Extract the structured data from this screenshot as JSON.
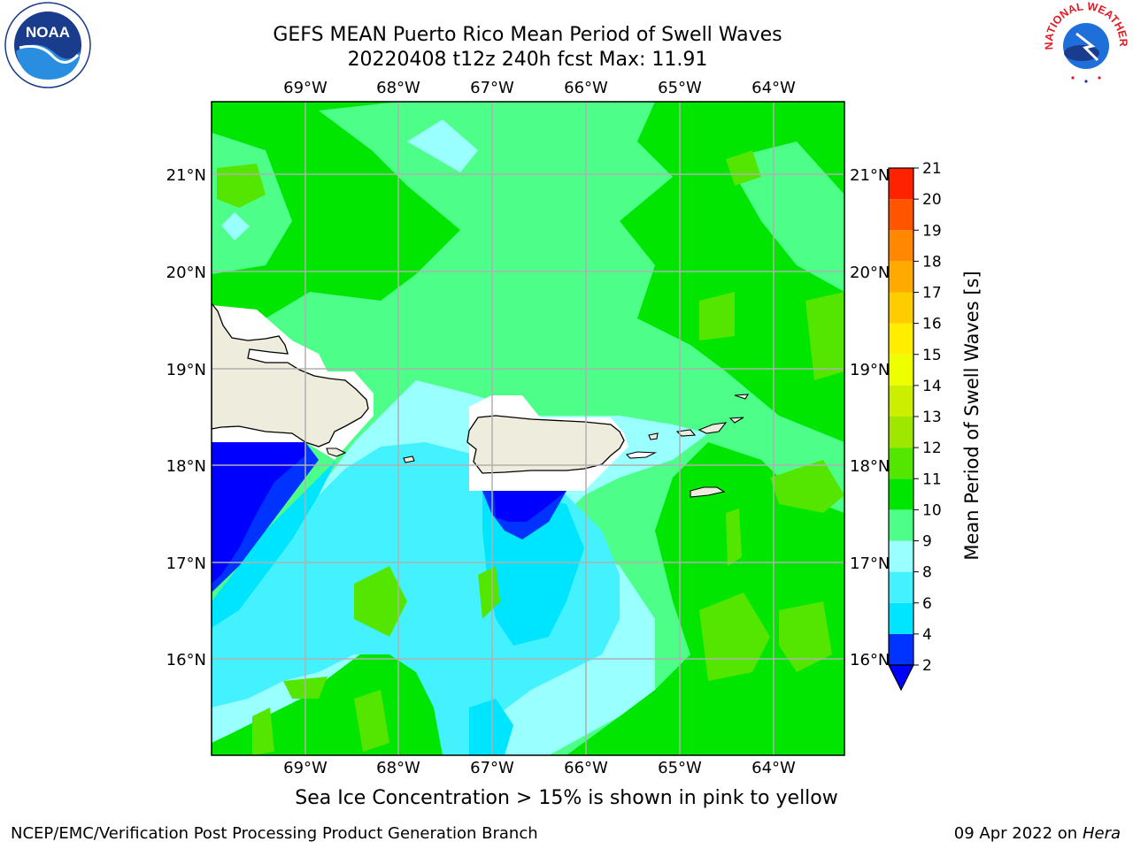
{
  "header": {
    "title_line1": "GEFS MEAN Puerto Rico Mean Period of Swell Waves",
    "title_line2": "20220408 t12z 240h fcst   Max: 11.91"
  },
  "logos": {
    "noaa": {
      "text": "NOAA",
      "icon": "noaa-logo-icon"
    },
    "nws": {
      "text": "NATIONAL WEATHER SERVICE",
      "icon": "nws-logo-icon"
    }
  },
  "map": {
    "lon_labels": [
      "69°W",
      "68°W",
      "67°W",
      "66°W",
      "65°W",
      "64°W"
    ],
    "lat_labels": [
      "21°N",
      "20°N",
      "19°N",
      "18°N",
      "17°N",
      "16°N"
    ],
    "extent": {
      "lon_min": -70.0,
      "lon_max": -63.25,
      "lat_min": 15.0,
      "lat_max": 21.75
    },
    "colors": {
      "land": "#eeecdc",
      "coast": "#000000",
      "grid": "#b0b0b0",
      "masked": "#ffffff"
    }
  },
  "colorbar": {
    "label": "Mean Period of Swell Waves [s]",
    "ticks": [
      "2",
      "4",
      "6",
      "8",
      "9",
      "10",
      "11",
      "12",
      "13",
      "14",
      "15",
      "16",
      "17",
      "18",
      "19",
      "20",
      "21"
    ],
    "levels": [
      2,
      4,
      6,
      8,
      9,
      10,
      11,
      12,
      13,
      14,
      15,
      16,
      17,
      18,
      19,
      20,
      21
    ],
    "colors": [
      "#0033ff",
      "#00e5ff",
      "#44f2ff",
      "#99ffff",
      "#4dff88",
      "#00e600",
      "#55e600",
      "#9fe600",
      "#ccee00",
      "#eeff00",
      "#ffee00",
      "#ffcc00",
      "#ffaa00",
      "#ff8800",
      "#ff5500",
      "#ff2200",
      "#ff0000"
    ],
    "under_color": "#0000ff"
  },
  "notes": {
    "sea_ice": "Sea Ice Concentration > 15% is shown in pink to yellow"
  },
  "footer": {
    "left": "NCEP/EMC/Verification Post Processing Product Generation Branch",
    "date": "09 Apr 2022 on ",
    "host": "Hera"
  }
}
